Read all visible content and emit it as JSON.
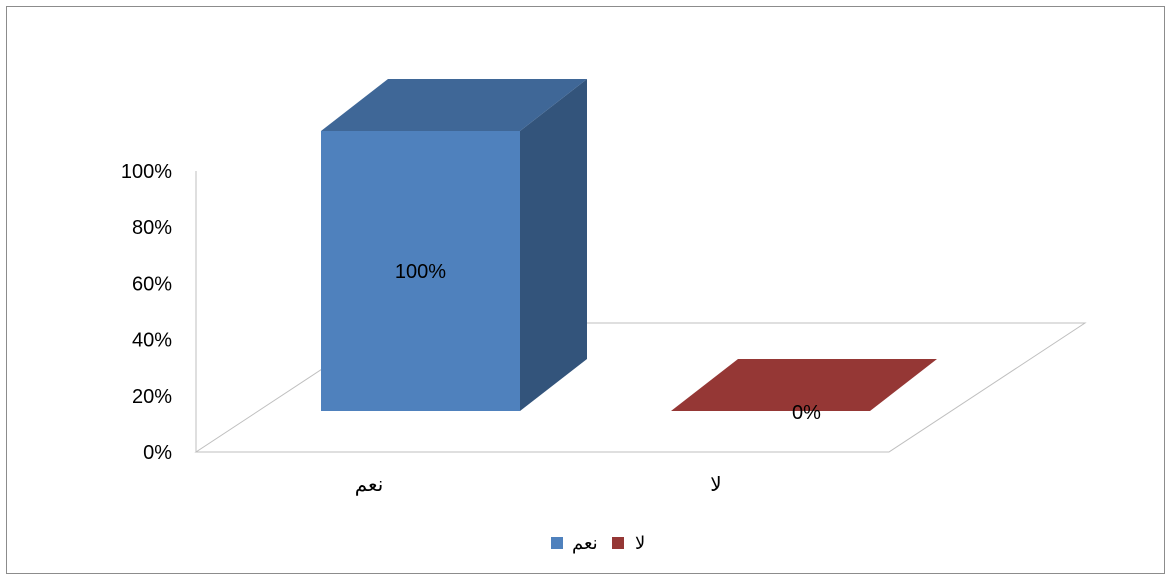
{
  "chart_data": {
    "type": "bar",
    "style": "3d-column",
    "categories": [
      "نعم",
      "لا"
    ],
    "series": [
      {
        "values": [
          100,
          0
        ]
      }
    ],
    "bar_colors": [
      "#4F81BD",
      "#953735"
    ],
    "data_labels": [
      "100%",
      "0%"
    ],
    "ylim": [
      0,
      100
    ],
    "yticks": [
      "0%",
      "20%",
      "40%",
      "60%",
      "80%",
      "100%"
    ],
    "grid": false,
    "legend": {
      "position": "bottom",
      "entries": [
        {
          "label": "نعم",
          "color": "#4F81BD"
        },
        {
          "label": "لا",
          "color": "#953735"
        }
      ]
    },
    "title": "",
    "xlabel": "",
    "ylabel": ""
  }
}
